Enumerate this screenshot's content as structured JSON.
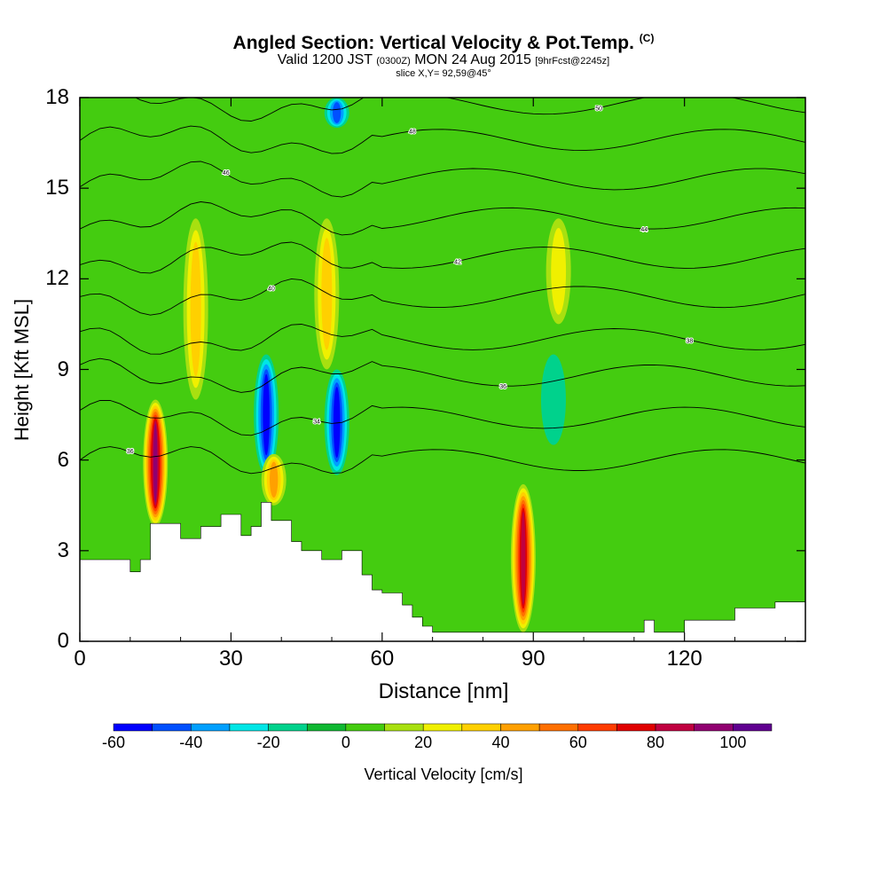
{
  "header": {
    "title": "Angled Section: Vertical Velocity & Pot.Temp.",
    "title_units": "(C)",
    "valid_prefix": "Valid 1200 JST",
    "valid_utc": "(0300Z)",
    "valid_date": "MON 24 Aug 2015",
    "forecast_info": "[9hrFcst@2245z]",
    "slice_info": "slice X,Y= 92,59@45°"
  },
  "chart_data": {
    "type": "heatmap",
    "xlabel": "Distance [nm]",
    "ylabel": "Height [Kft MSL]",
    "xlim": [
      0,
      144
    ],
    "ylim": [
      0,
      18
    ],
    "x_ticks": [
      "0",
      "30",
      "60",
      "90",
      "120"
    ],
    "y_ticks": [
      "0",
      "3",
      "6",
      "9",
      "12",
      "15",
      "18"
    ],
    "x_tick_values": [
      0,
      30,
      60,
      90,
      120
    ],
    "y_tick_values": [
      0,
      3,
      6,
      9,
      12,
      15,
      18
    ],
    "terrain": {
      "x": [
        0,
        10,
        10,
        12,
        12,
        14,
        14,
        20,
        20,
        24,
        24,
        28,
        28,
        32,
        32,
        34,
        34,
        36,
        36,
        38,
        38,
        42,
        42,
        44,
        44,
        48,
        48,
        52,
        52,
        56,
        56,
        58,
        58,
        60,
        60,
        64,
        64,
        66,
        66,
        68,
        68,
        70,
        70,
        112,
        112,
        114,
        114,
        120,
        120,
        130,
        130,
        138,
        138,
        144
      ],
      "y": [
        2.7,
        2.7,
        2.3,
        2.3,
        2.7,
        2.7,
        3.9,
        3.9,
        3.4,
        3.4,
        3.8,
        3.8,
        4.2,
        4.2,
        3.5,
        3.5,
        3.8,
        3.8,
        4.6,
        4.6,
        4.0,
        4.0,
        3.3,
        3.3,
        3.0,
        3.0,
        2.7,
        2.7,
        3.0,
        3.0,
        2.2,
        2.2,
        1.7,
        1.7,
        1.6,
        1.6,
        1.2,
        1.2,
        0.8,
        0.8,
        0.5,
        0.5,
        0.3,
        0.3,
        0.7,
        0.7,
        0.3,
        0.3,
        0.7,
        0.7,
        1.1,
        1.1,
        1.3,
        1.3
      ]
    },
    "velocity_features": [
      {
        "x": 15,
        "z_min": 3.8,
        "z_max": 8,
        "w": 90
      },
      {
        "x": 23,
        "z_min": 8,
        "z_max": 14,
        "w": 30
      },
      {
        "x": 37,
        "z_min": 5.5,
        "z_max": 9.5,
        "w": -50
      },
      {
        "x": 38.5,
        "z_min": 4.5,
        "z_max": 6.2,
        "w": 45
      },
      {
        "x": 49,
        "z_min": 9,
        "z_max": 14,
        "w": 30
      },
      {
        "x": 51,
        "z_min": 5.5,
        "z_max": 9,
        "w": -50
      },
      {
        "x": 51,
        "z_min": 17,
        "z_max": 18,
        "w": -40
      },
      {
        "x": 88,
        "z_min": 0.3,
        "z_max": 5.2,
        "w": 85
      },
      {
        "x": 95,
        "z_min": 10.5,
        "z_max": 14,
        "w": 25
      },
      {
        "x": 94,
        "z_min": 6.5,
        "z_max": 9.5,
        "w": -15
      }
    ],
    "theta_contours": [
      {
        "z": 6.0,
        "label": "36"
      },
      {
        "z": 7.4,
        "label": "34"
      },
      {
        "z": 8.8,
        "label": "36"
      },
      {
        "z": 10.0,
        "label": "38"
      },
      {
        "z": 11.4,
        "label": "40"
      },
      {
        "z": 12.7,
        "label": "42"
      },
      {
        "z": 14.0,
        "label": "44"
      },
      {
        "z": 15.3,
        "label": "46"
      },
      {
        "z": 16.6,
        "label": "48"
      },
      {
        "z": 17.8,
        "label": "50"
      }
    ],
    "colorbar": {
      "label": "Vertical Velocity [cm/s]",
      "min": -60,
      "max": 110,
      "step": 10,
      "tick_values": [
        -60,
        -40,
        -20,
        0,
        20,
        40,
        60,
        80,
        100
      ],
      "tick_labels": [
        "-60",
        "-40",
        "-20",
        "0",
        "20",
        "40",
        "60",
        "80",
        "100"
      ],
      "colors": [
        "#0000ff",
        "#0050ff",
        "#00a0ff",
        "#00e6e6",
        "#00d28c",
        "#10b832",
        "#44cc10",
        "#a8e010",
        "#f0f000",
        "#ffd000",
        "#ffa000",
        "#ff7000",
        "#ff3c00",
        "#e00000",
        "#c00040",
        "#900070",
        "#600090"
      ]
    }
  }
}
